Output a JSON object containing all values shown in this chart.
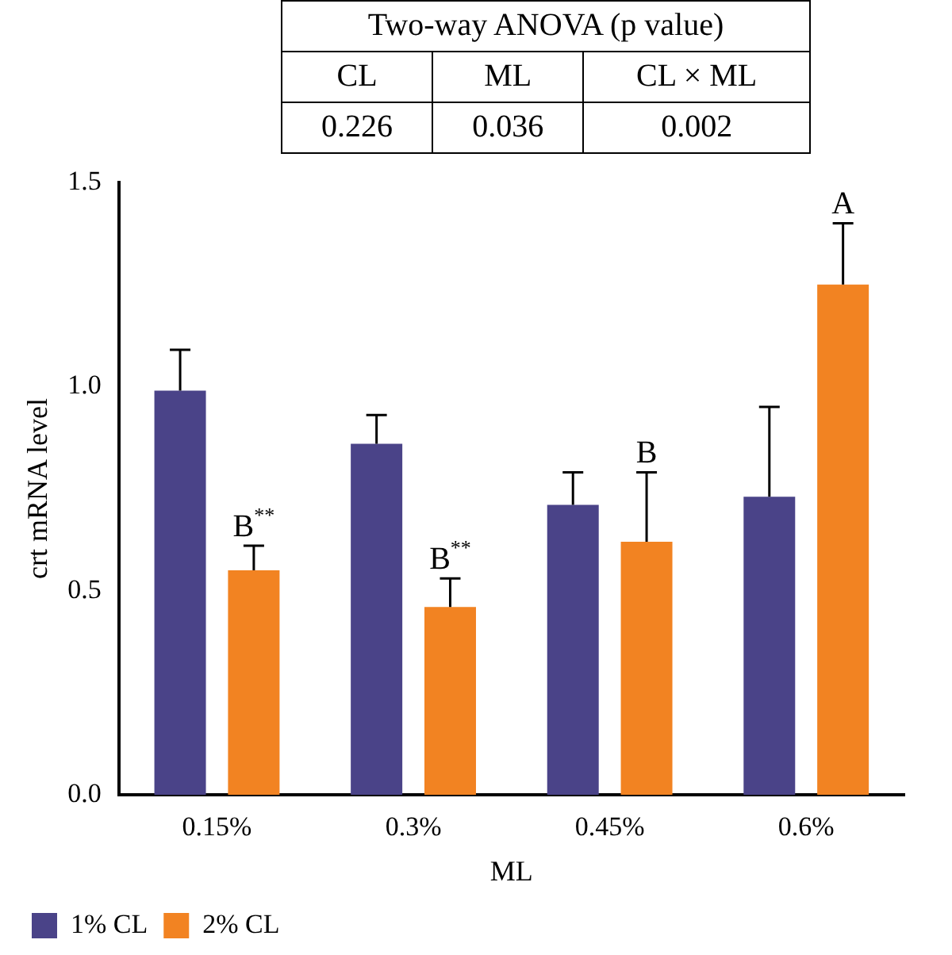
{
  "chart_data": {
    "type": "bar",
    "xlabel": "ML",
    "ylabel": "crt mRNA level",
    "categories": [
      "0.15%",
      "0.3%",
      "0.45%",
      "0.6%"
    ],
    "series": [
      {
        "name": "1% CL",
        "color": "#4a4388",
        "values": [
          0.99,
          0.86,
          0.71,
          0.73
        ],
        "errors": [
          [
            0.99,
            1.09
          ],
          [
            0.86,
            0.93
          ],
          [
            0.71,
            0.79
          ],
          [
            0.73,
            0.95
          ]
        ]
      },
      {
        "name": "2% CL",
        "color": "#f28322",
        "values": [
          0.55,
          0.46,
          0.62,
          1.25
        ],
        "errors": [
          [
            0.55,
            0.61
          ],
          [
            0.46,
            0.53
          ],
          [
            0.62,
            0.79
          ],
          [
            1.25,
            1.4
          ]
        ]
      }
    ],
    "ylim": [
      0,
      1.5
    ],
    "yticks": [
      {
        "value": 0,
        "label": "0.0"
      },
      {
        "value": 0.5,
        "label": "0.5"
      },
      {
        "value": 1,
        "label": "1.0"
      },
      {
        "value": 1.5,
        "label": "1.5"
      }
    ],
    "grid": false,
    "legend": "bottom left",
    "annotations": [
      "Two-way ANOVA (p value)",
      "CL",
      "ML",
      "CL × ML",
      "0.226",
      "0.036",
      "0.002",
      "B$^{**}$",
      "B$^{**}$",
      "B",
      "A"
    ]
  }
}
